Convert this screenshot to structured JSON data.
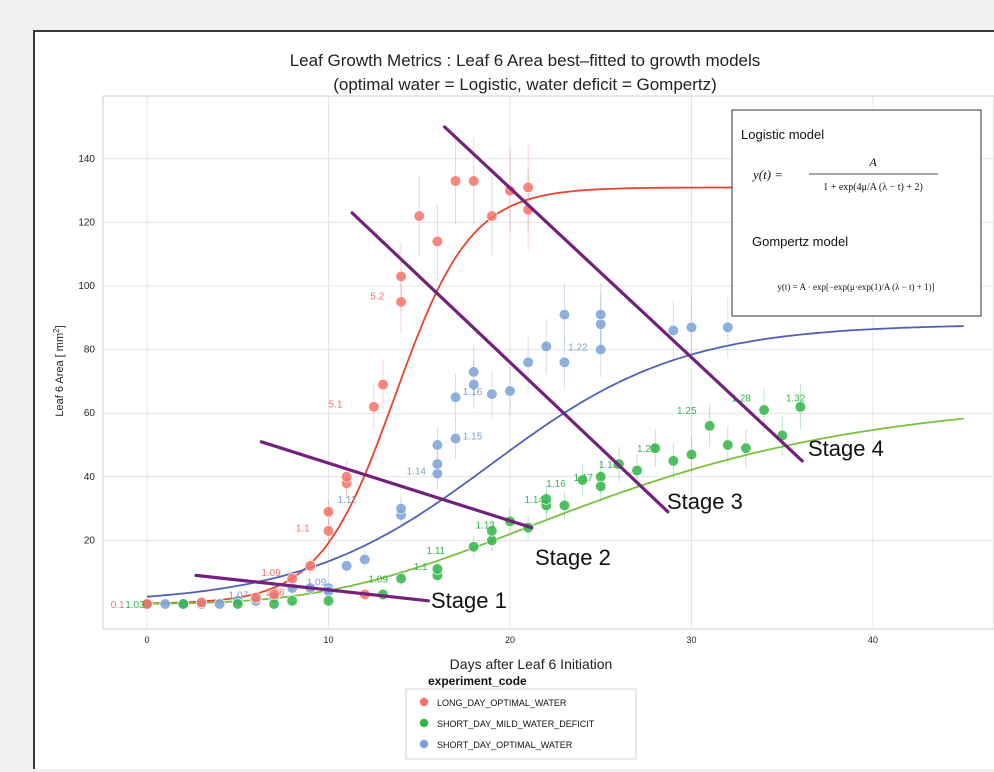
{
  "chart_data": {
    "type": "scatter",
    "title": "Leaf Growth Metrics : Leaf 6 Area best–fitted to growth models",
    "subtitle": "(optimal water = Logistic, water deficit = Gompertz)",
    "xlabel": "Days after Leaf 6 Initiation",
    "ylabel": "Leaf 6 Area [ mm",
    "ylabel_sup": "2",
    "ylabel_end": "]",
    "xlim": [
      -2,
      47
    ],
    "ylim": [
      -8,
      152
    ],
    "xticks": [
      0,
      10,
      20,
      30,
      40
    ],
    "yticks": [
      20,
      40,
      60,
      80,
      100,
      120,
      140
    ],
    "legend": {
      "title": "experiment_code",
      "placement": "bottom-center",
      "entries": [
        "LONG_DAY_OPTIMAL_WATER",
        "SHORT_DAY_MILD_WATER_DEFICIT",
        "SHORT_DAY_OPTIMAL_WATER"
      ]
    },
    "colors": {
      "long_day_optimal_water": "#f4736a",
      "long_day_optimal_water_fit": "#e8432c",
      "short_day_mild_water_deficit": "#33b54a",
      "short_day_mild_water_deficit_fit": "#79c23c",
      "short_day_optimal_water": "#7ba2d6",
      "short_day_optimal_water_fit": "#4d62b3",
      "stage_lines": "#74217d"
    },
    "series": [
      {
        "name": "LONG_DAY_OPTIMAL_WATER",
        "x": [
          0,
          3,
          6,
          7,
          8,
          9,
          10,
          10,
          11,
          11,
          12,
          12.5,
          13,
          14,
          14,
          15,
          16,
          17,
          18,
          19,
          20,
          21,
          21
        ],
        "y": [
          0,
          0.5,
          2,
          3,
          8,
          12,
          23,
          29,
          38,
          40,
          3,
          62,
          69,
          95,
          103,
          122,
          114,
          133,
          133,
          122,
          130,
          124,
          131
        ],
        "fit": {
          "model": "Logistic",
          "A": 131,
          "mu": 15.7,
          "lambda": 9.5
        }
      },
      {
        "name": "SHORT_DAY_OPTIMAL_WATER",
        "x": [
          0,
          1,
          2,
          3,
          4,
          5,
          6,
          7,
          8,
          9,
          10,
          10,
          11,
          12,
          14,
          14,
          16,
          16,
          16,
          17,
          17,
          18,
          18,
          19,
          20,
          21,
          22,
          23,
          23,
          25,
          25,
          25,
          29,
          30,
          32
        ],
        "y": [
          0,
          0,
          0,
          0,
          0,
          1,
          1,
          2,
          5,
          5,
          5,
          4,
          12,
          14,
          28,
          30,
          41,
          44,
          50,
          52,
          65,
          69,
          73,
          66,
          67,
          76,
          81,
          76,
          91,
          80,
          88,
          91,
          86,
          87,
          87
        ],
        "fit": {
          "model": "Logistic",
          "A": 88,
          "mu": 4.2,
          "lambda": 8.5
        }
      },
      {
        "name": "SHORT_DAY_MILD_WATER_DEFICIT",
        "x": [
          0,
          2,
          5,
          7,
          8,
          10,
          13,
          14,
          16,
          16,
          18,
          19,
          19,
          20,
          21,
          22,
          22,
          23,
          24,
          25,
          25,
          26,
          27,
          28,
          29,
          30,
          31,
          32,
          33,
          34,
          35,
          36
        ],
        "y": [
          0,
          0,
          0,
          0,
          1,
          1,
          3,
          8,
          9,
          11,
          18,
          20,
          23,
          26,
          24,
          31,
          33,
          31,
          39,
          40,
          37,
          44,
          42,
          49,
          45,
          47,
          56,
          50,
          49,
          61,
          53,
          62
        ],
        "fit": {
          "model": "Gompertz",
          "A": 65,
          "mu": 2.2,
          "lambda": 10
        }
      }
    ],
    "point_labels": [
      {
        "text": "0.1",
        "series": "LONG_DAY_OPTIMAL_WATER",
        "x": -2,
        "y": 0
      },
      {
        "text": "1.03",
        "series": "SHORT_DAY_MILD_WATER_DEFICIT",
        "x": -1.2,
        "y": 0
      },
      {
        "text": "1.07",
        "series": "SHORT_DAY_OPTIMAL_WATER",
        "x": 4.5,
        "y": 3
      },
      {
        "text": "1.08",
        "series": "LONG_DAY_OPTIMAL_WATER",
        "x": 6.5,
        "y": 4
      },
      {
        "text": "1.09",
        "series": "LONG_DAY_OPTIMAL_WATER",
        "x": 6.3,
        "y": 10
      },
      {
        "text": "1.1",
        "series": "LONG_DAY_OPTIMAL_WATER",
        "x": 8.2,
        "y": 24
      },
      {
        "text": "1.09",
        "series": "SHORT_DAY_OPTIMAL_WATER",
        "x": 8.8,
        "y": 7
      },
      {
        "text": "1.11",
        "series": "SHORT_DAY_OPTIMAL_WATER",
        "x": 10.5,
        "y": 33
      },
      {
        "text": "5.1",
        "series": "LONG_DAY_OPTIMAL_WATER",
        "x": 10,
        "y": 63
      },
      {
        "text": "5.2",
        "series": "LONG_DAY_OPTIMAL_WATER",
        "x": 12.3,
        "y": 97
      },
      {
        "text": "1.09",
        "series": "SHORT_DAY_MILD_WATER_DEFICIT",
        "x": 12.2,
        "y": 8
      },
      {
        "text": "1.1",
        "series": "SHORT_DAY_MILD_WATER_DEFICIT",
        "x": 14.7,
        "y": 12
      },
      {
        "text": "1.11",
        "series": "SHORT_DAY_MILD_WATER_DEFICIT",
        "x": 15.4,
        "y": 17
      },
      {
        "text": "1.14",
        "series": "SHORT_DAY_OPTIMAL_WATER",
        "x": 14.3,
        "y": 42
      },
      {
        "text": "1.15",
        "series": "SHORT_DAY_OPTIMAL_WATER",
        "x": 17.4,
        "y": 53
      },
      {
        "text": "1.16",
        "series": "SHORT_DAY_OPTIMAL_WATER",
        "x": 17.4,
        "y": 67
      },
      {
        "text": "1.13",
        "series": "SHORT_DAY_MILD_WATER_DEFICIT",
        "x": 18.1,
        "y": 25
      },
      {
        "text": "1.14",
        "series": "SHORT_DAY_MILD_WATER_DEFICIT",
        "x": 20.8,
        "y": 33
      },
      {
        "text": "1.16",
        "series": "SHORT_DAY_MILD_WATER_DEFICIT",
        "x": 22,
        "y": 38
      },
      {
        "text": "1.17",
        "series": "SHORT_DAY_MILD_WATER_DEFICIT",
        "x": 23.5,
        "y": 40
      },
      {
        "text": "1.18",
        "series": "SHORT_DAY_MILD_WATER_DEFICIT",
        "x": 24.9,
        "y": 44
      },
      {
        "text": "1.22",
        "series": "SHORT_DAY_MILD_WATER_DEFICIT",
        "x": 27,
        "y": 49
      },
      {
        "text": "1.22",
        "series": "SHORT_DAY_OPTIMAL_WATER",
        "x": 23.2,
        "y": 81
      },
      {
        "text": "1.25",
        "series": "SHORT_DAY_MILD_WATER_DEFICIT",
        "x": 29.2,
        "y": 61
      },
      {
        "text": "1.28",
        "series": "SHORT_DAY_MILD_WATER_DEFICIT",
        "x": 32.2,
        "y": 65
      },
      {
        "text": "1.32",
        "series": "SHORT_DAY_MILD_WATER_DEFICIT",
        "x": 35.2,
        "y": 65
      }
    ],
    "annotations": {
      "stage_labels": [
        "Stage 1",
        "Stage 2",
        "Stage 3",
        "Stage 4"
      ],
      "stage_lines": [
        {
          "label": "Stage 1",
          "from": [
            2.7,
            9
          ],
          "to": [
            15.5,
            1
          ]
        },
        {
          "label": "Stage 2",
          "from": [
            6.3,
            51
          ],
          "to": [
            21.2,
            24
          ]
        },
        {
          "label": "Stage 3",
          "from": [
            11.3,
            123
          ],
          "to": [
            28.7,
            29
          ]
        },
        {
          "label": "Stage 4",
          "from": [
            16.4,
            150
          ],
          "to": [
            36.1,
            45
          ]
        }
      ],
      "model_box": {
        "logistic_title": "Logistic model",
        "logistic_formula_lhs": "y(t) =",
        "logistic_formula_num": "A",
        "logistic_formula_den": "1 + exp(4μ/A (λ − t) + 2)",
        "gompertz_title": "Gompertz model",
        "gompertz_formula": "y(t) = A · exp[−exp(μ·exp(1)/A (λ − t) + 1)]"
      }
    }
  }
}
